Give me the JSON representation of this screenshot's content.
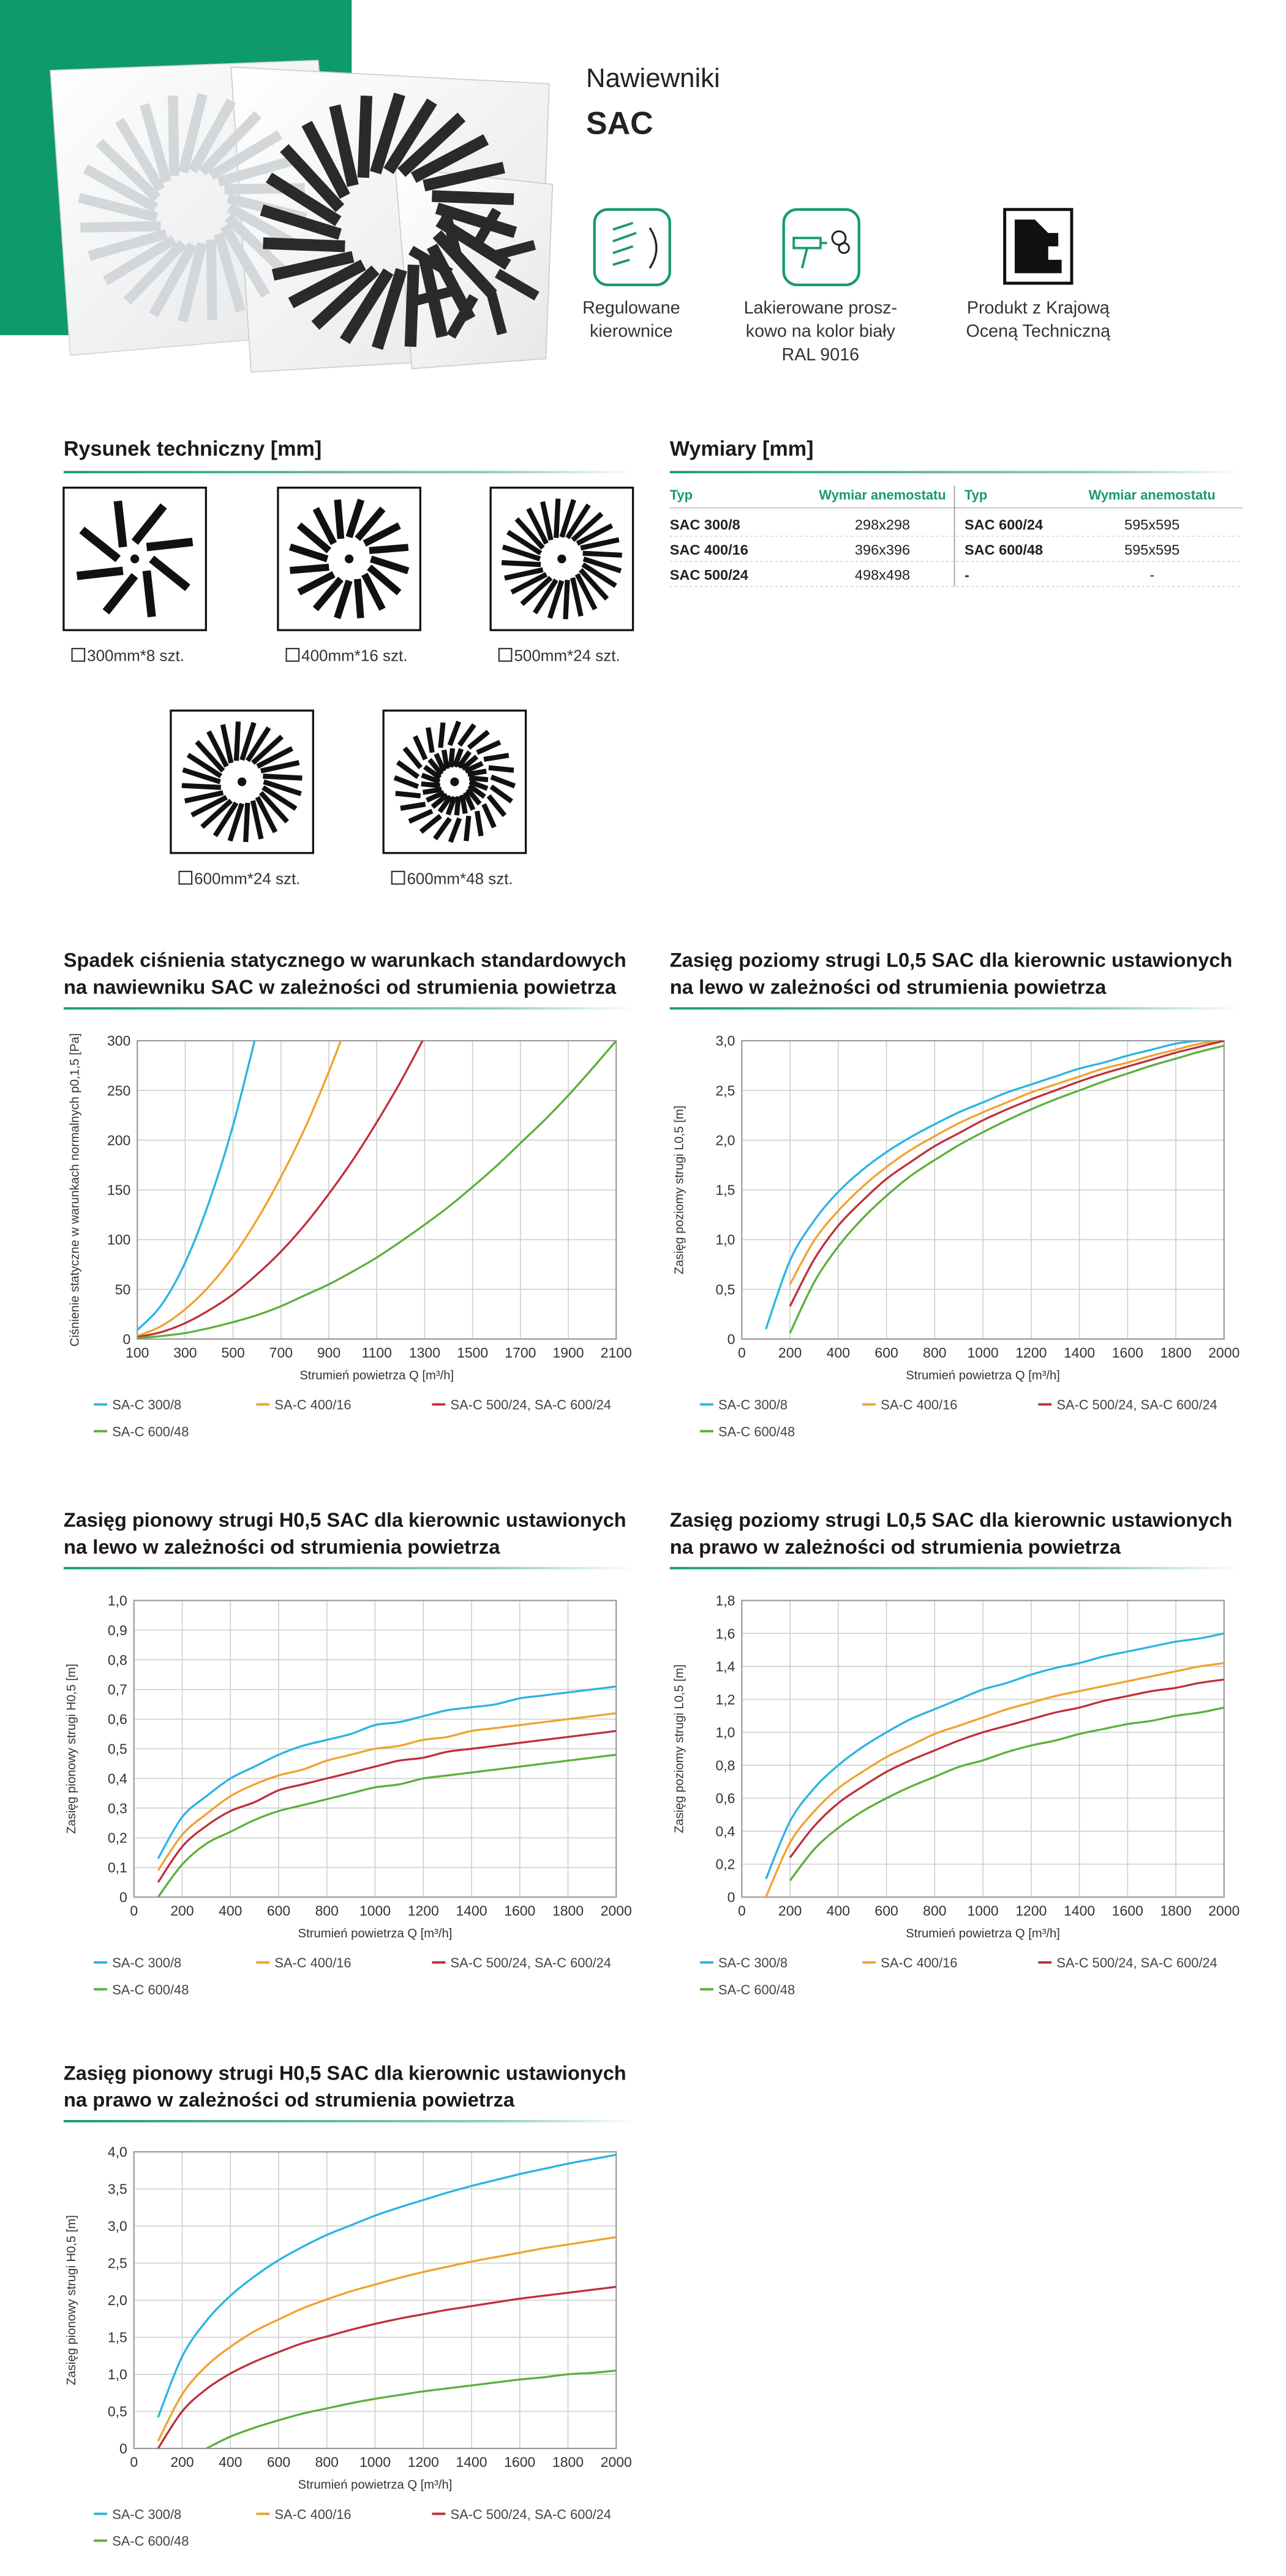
{
  "header": {
    "title": "Nawiewniki",
    "model": "SAC"
  },
  "features": [
    {
      "lines": [
        "Regulowane",
        "kierownice"
      ]
    },
    {
      "lines": [
        "Lakierowane prosz-",
        "kowo na kolor biały",
        "RAL 9016"
      ]
    },
    {
      "lines": [
        "Produkt z Krajową",
        "Oceną Techniczną"
      ]
    }
  ],
  "drawings": {
    "title": "Rysunek techniczny [mm]",
    "items": [
      {
        "label": "300mm*8 szt.",
        "slots": 8
      },
      {
        "label": "400mm*16 szt.",
        "slots": 16
      },
      {
        "label": "500mm*24 szt.",
        "slots": 24
      },
      {
        "label": "600mm*24 szt.",
        "slots": 24
      },
      {
        "label": "600mm*48 szt.",
        "slots": 48
      }
    ]
  },
  "dimensions": {
    "title": "Wymiary [mm]",
    "columns": [
      "Typ",
      "Wymiar anemostatu",
      "Typ",
      "Wymiar anemostatu"
    ],
    "rows": [
      [
        "SAC 300/8",
        "298x298",
        "SAC 600/24",
        "595x595"
      ],
      [
        "SAC 400/16",
        "396x396",
        "SAC 600/48",
        "595x595"
      ],
      [
        "SAC 500/24",
        "498x498",
        "-",
        "-"
      ]
    ]
  },
  "chart_data": [
    {
      "type": "line",
      "title": [
        "Spadek ciśnienia statycznego w warunkach standardowych",
        "na nawiewniku SAC w zależności od strumienia powietrza"
      ],
      "xlabel": "Strumień powietrza Q [m³/h]",
      "ylabel": "Ciśnienie statyczne w warunkach normalnych p0,1,5 [Pa]",
      "x": [
        100,
        200,
        300,
        400,
        500,
        600,
        700,
        800,
        900,
        1000,
        1100,
        1200,
        1300,
        1400,
        1500,
        1600,
        1700,
        1800,
        1900,
        2000,
        2100
      ],
      "xlim": [
        100,
        2100
      ],
      "xticks": [
        100,
        300,
        500,
        700,
        900,
        1100,
        1300,
        1500,
        1700,
        1900,
        2100
      ],
      "ylim": [
        0,
        300
      ],
      "yticks": [
        0,
        50,
        100,
        150,
        200,
        250,
        300
      ],
      "grid": true,
      "series": [
        {
          "name": "SA-C 300/8",
          "color": "#2bb3e3",
          "values": [
            9,
            34,
            77,
            138,
            215,
            310,
            null,
            null,
            null,
            null,
            null,
            null,
            null,
            null,
            null,
            null,
            null,
            null,
            null,
            null,
            null
          ]
        },
        {
          "name": "SA-C 400/16",
          "color": "#f0a22e",
          "values": [
            3,
            13,
            30,
            53,
            83,
            120,
            163,
            212,
            269,
            332,
            null,
            null,
            null,
            null,
            null,
            null,
            null,
            null,
            null,
            null,
            null
          ]
        },
        {
          "name": "SA-C 500/24, SA-C 600/24",
          "color": "#bf2f3b",
          "values": [
            2,
            7,
            16,
            29,
            45,
            65,
            88,
            115,
            146,
            180,
            218,
            259,
            304,
            null,
            null,
            null,
            null,
            null,
            null,
            null,
            null
          ]
        },
        {
          "name": "SA-C 600/48",
          "color": "#5daf3a",
          "values": [
            1,
            3,
            6,
            11,
            17,
            24,
            33,
            44,
            55,
            68,
            82,
            98,
            115,
            133,
            153,
            174,
            197,
            220,
            245,
            272,
            300
          ]
        }
      ]
    },
    {
      "type": "line",
      "title": [
        "Zasięg poziomy strugi L0,5 SAC dla kierownic ustawionych",
        "na lewo w zależności od strumienia powietrza"
      ],
      "xlabel": "Strumień powietrza Q [m³/h]",
      "ylabel": "Zasięg poziomy strugi L0,5 [m]",
      "x": [
        0,
        100,
        200,
        300,
        400,
        500,
        600,
        700,
        800,
        900,
        1000,
        1100,
        1200,
        1300,
        1400,
        1500,
        1600,
        1700,
        1800,
        1900,
        2000
      ],
      "xlim": [
        0,
        2000
      ],
      "xticks": [
        0,
        200,
        400,
        600,
        800,
        1000,
        1200,
        1400,
        1600,
        1800,
        2000
      ],
      "ylim": [
        0,
        3
      ],
      "yticks": [
        0,
        {
          "value": 0.5,
          "label": "0,5"
        },
        {
          "value": 1,
          "label": "1,0"
        },
        {
          "value": 1.5,
          "label": "1,5"
        },
        {
          "value": 2,
          "label": "2,0"
        },
        {
          "value": 2.5,
          "label": "2,5"
        },
        {
          "value": 3,
          "label": "3,0"
        }
      ],
      "grid": true,
      "series": [
        {
          "name": "SA-C 300/8",
          "color": "#2bb3e3",
          "values": [
            null,
            0.1,
            0.79,
            1.19,
            1.48,
            1.7,
            1.88,
            2.03,
            2.16,
            2.28,
            2.38,
            2.48,
            2.56,
            2.64,
            2.72,
            2.78,
            2.85,
            2.91,
            2.97,
            3.0,
            3.0
          ]
        },
        {
          "name": "SA-C 400/16",
          "color": "#f0a22e",
          "values": [
            null,
            null,
            0.55,
            0.99,
            1.29,
            1.53,
            1.73,
            1.9,
            2.04,
            2.17,
            2.28,
            2.38,
            2.48,
            2.56,
            2.64,
            2.72,
            2.78,
            2.85,
            2.91,
            2.97,
            3.0
          ]
        },
        {
          "name": "SA-C 500/24, SA-C 600/24",
          "color": "#bf2f3b",
          "values": [
            null,
            null,
            0.33,
            0.8,
            1.14,
            1.39,
            1.61,
            1.78,
            1.94,
            2.07,
            2.2,
            2.31,
            2.41,
            2.5,
            2.59,
            2.67,
            2.74,
            2.81,
            2.88,
            2.94,
            3.0
          ]
        },
        {
          "name": "SA-C 600/48",
          "color": "#5daf3a",
          "values": [
            null,
            null,
            0.06,
            0.57,
            0.93,
            1.21,
            1.44,
            1.64,
            1.8,
            1.95,
            2.08,
            2.2,
            2.31,
            2.41,
            2.5,
            2.59,
            2.67,
            2.75,
            2.82,
            2.89,
            2.95
          ]
        }
      ]
    },
    {
      "type": "line",
      "title": [
        "Zasięg pionowy strugi H0,5 SAC dla kierownic ustawionych",
        "na lewo w zależności od strumienia powietrza"
      ],
      "xlabel": "Strumień powietrza Q [m³/h]",
      "ylabel": "Zasięg pionowy strugi H0,5 [m]",
      "x": [
        0,
        100,
        200,
        300,
        400,
        500,
        600,
        700,
        800,
        900,
        1000,
        1100,
        1200,
        1300,
        1400,
        1500,
        1600,
        1700,
        1800,
        1900,
        2000
      ],
      "xlim": [
        0,
        2000
      ],
      "xticks": [
        0,
        200,
        400,
        600,
        800,
        1000,
        1200,
        1400,
        1600,
        1800,
        2000
      ],
      "ylim": [
        0,
        1
      ],
      "yticks": [
        0,
        {
          "value": 0.1,
          "label": "0,1"
        },
        {
          "value": 0.2,
          "label": "0,2"
        },
        {
          "value": 0.3,
          "label": "0,3"
        },
        {
          "value": 0.4,
          "label": "0,4"
        },
        {
          "value": 0.5,
          "label": "0,5"
        },
        {
          "value": 0.6,
          "label": "0,6"
        },
        {
          "value": 0.7,
          "label": "0,7"
        },
        {
          "value": 0.8,
          "label": "0,8"
        },
        {
          "value": 0.9,
          "label": "0,9"
        },
        {
          "value": 1,
          "label": "1,0"
        }
      ],
      "grid": true,
      "series": [
        {
          "name": "SA-C 300/8",
          "color": "#2bb3e3",
          "values": [
            null,
            0.13,
            0.27,
            0.34,
            0.4,
            0.44,
            0.48,
            0.51,
            0.53,
            0.55,
            0.58,
            0.59,
            0.61,
            0.63,
            0.64,
            0.65,
            0.67,
            0.68,
            0.69,
            0.7,
            0.71
          ]
        },
        {
          "name": "SA-C 400/16",
          "color": "#f0a22e",
          "values": [
            null,
            0.09,
            0.21,
            0.28,
            0.34,
            0.38,
            0.41,
            0.43,
            0.46,
            0.48,
            0.5,
            0.51,
            0.53,
            0.54,
            0.56,
            0.57,
            0.58,
            0.59,
            0.6,
            0.61,
            0.62
          ]
        },
        {
          "name": "SA-C 500/24, SA-C 600/24",
          "color": "#bf2f3b",
          "values": [
            null,
            0.05,
            0.17,
            0.24,
            0.29,
            0.32,
            0.36,
            0.38,
            0.4,
            0.42,
            0.44,
            0.46,
            0.47,
            0.49,
            0.5,
            0.51,
            0.52,
            0.53,
            0.54,
            0.55,
            0.56
          ]
        },
        {
          "name": "SA-C 600/48",
          "color": "#5daf3a",
          "values": [
            null,
            0,
            0.11,
            0.18,
            0.22,
            0.26,
            0.29,
            0.31,
            0.33,
            0.35,
            0.37,
            0.38,
            0.4,
            0.41,
            0.42,
            0.43,
            0.44,
            0.45,
            0.46,
            0.47,
            0.48
          ]
        }
      ]
    },
    {
      "type": "line",
      "title": [
        "Zasięg poziomy strugi L0,5 SAC dla kierownic ustawionych",
        "na prawo w zależności od strumienia powietrza"
      ],
      "xlabel": "Strumień powietrza Q [m³/h]",
      "ylabel": "Zasięg poziomy strugi L0,5 [m]",
      "x": [
        0,
        100,
        200,
        300,
        400,
        500,
        600,
        700,
        800,
        900,
        1000,
        1100,
        1200,
        1300,
        1400,
        1500,
        1600,
        1700,
        1800,
        1900,
        2000
      ],
      "xlim": [
        0,
        2000
      ],
      "xticks": [
        0,
        200,
        400,
        600,
        800,
        1000,
        1200,
        1400,
        1600,
        1800,
        2000
      ],
      "ylim": [
        0,
        1.8
      ],
      "yticks": [
        0,
        {
          "value": 0.2,
          "label": "0,2"
        },
        {
          "value": 0.4,
          "label": "0,4"
        },
        {
          "value": 0.6,
          "label": "0,6"
        },
        {
          "value": 0.8,
          "label": "0,8"
        },
        {
          "value": 1,
          "label": "1,0"
        },
        {
          "value": 1.2,
          "label": "1,2"
        },
        {
          "value": 1.4,
          "label": "1,4"
        },
        {
          "value": 1.6,
          "label": "1,6"
        },
        {
          "value": 1.8,
          "label": "1,8"
        }
      ],
      "grid": true,
      "series": [
        {
          "name": "SA-C 300/8",
          "color": "#2bb3e3",
          "values": [
            null,
            0.11,
            0.46,
            0.66,
            0.8,
            0.91,
            1.0,
            1.08,
            1.14,
            1.2,
            1.26,
            1.3,
            1.35,
            1.39,
            1.42,
            1.46,
            1.49,
            1.52,
            1.55,
            1.57,
            1.6
          ]
        },
        {
          "name": "SA-C 400/16",
          "color": "#f0a22e",
          "values": [
            null,
            0,
            0.33,
            0.52,
            0.66,
            0.76,
            0.85,
            0.92,
            0.99,
            1.04,
            1.09,
            1.14,
            1.18,
            1.22,
            1.25,
            1.28,
            1.31,
            1.34,
            1.37,
            1.4,
            1.42
          ]
        },
        {
          "name": "SA-C 500/24, SA-C 600/24",
          "color": "#bf2f3b",
          "values": [
            null,
            null,
            0.24,
            0.43,
            0.57,
            0.67,
            0.76,
            0.83,
            0.89,
            0.95,
            1.0,
            1.04,
            1.08,
            1.12,
            1.15,
            1.19,
            1.22,
            1.25,
            1.27,
            1.3,
            1.32
          ]
        },
        {
          "name": "SA-C 600/48",
          "color": "#5daf3a",
          "values": [
            null,
            null,
            0.1,
            0.29,
            0.42,
            0.52,
            0.6,
            0.67,
            0.73,
            0.79,
            0.83,
            0.88,
            0.92,
            0.95,
            0.99,
            1.02,
            1.05,
            1.07,
            1.1,
            1.12,
            1.15
          ]
        }
      ]
    },
    {
      "type": "line",
      "title": [
        "Zasięg pionowy strugi H0,5 SAC dla kierownic ustawionych",
        "na prawo w zależności od strumienia powietrza"
      ],
      "xlabel": "Strumień powietrza Q [m³/h]",
      "ylabel": "Zasięg pionowy strugi H0,5 [m]",
      "x": [
        0,
        100,
        200,
        300,
        400,
        500,
        600,
        700,
        800,
        900,
        1000,
        1100,
        1200,
        1300,
        1400,
        1500,
        1600,
        1700,
        1800,
        1900,
        2000
      ],
      "xlim": [
        0,
        2000
      ],
      "xticks": [
        0,
        200,
        400,
        600,
        800,
        1000,
        1200,
        1400,
        1600,
        1800,
        2000
      ],
      "ylim": [
        0,
        4
      ],
      "yticks": [
        0,
        {
          "value": 0.5,
          "label": "0,5"
        },
        {
          "value": 1,
          "label": "1,0"
        },
        {
          "value": 1.5,
          "label": "1,5"
        },
        {
          "value": 2,
          "label": "2,0"
        },
        {
          "value": 2.5,
          "label": "2,5"
        },
        {
          "value": 3,
          "label": "3,0"
        },
        {
          "value": 3.5,
          "label": "3,5"
        },
        {
          "value": 4,
          "label": "4,0"
        }
      ],
      "grid": true,
      "series": [
        {
          "name": "SA-C 300/8",
          "color": "#2bb3e3",
          "values": [
            null,
            0.42,
            1.24,
            1.72,
            2.06,
            2.32,
            2.54,
            2.72,
            2.88,
            3.01,
            3.14,
            3.25,
            3.35,
            3.45,
            3.54,
            3.62,
            3.7,
            3.77,
            3.84,
            3.9,
            3.96
          ]
        },
        {
          "name": "SA-C 400/16",
          "color": "#f0a22e",
          "values": [
            null,
            0.1,
            0.73,
            1.11,
            1.37,
            1.58,
            1.74,
            1.89,
            2.01,
            2.12,
            2.21,
            2.3,
            2.38,
            2.45,
            2.52,
            2.58,
            2.64,
            2.7,
            2.75,
            2.8,
            2.85
          ]
        },
        {
          "name": "SA-C 500/24, SA-C 600/24",
          "color": "#bf2f3b",
          "values": [
            null,
            0,
            0.5,
            0.8,
            1.01,
            1.17,
            1.3,
            1.42,
            1.51,
            1.6,
            1.68,
            1.75,
            1.81,
            1.87,
            1.92,
            1.97,
            2.02,
            2.06,
            2.1,
            2.14,
            2.18
          ]
        },
        {
          "name": "SA-C 600/48",
          "color": "#5daf3a",
          "values": [
            null,
            null,
            null,
            0,
            0.16,
            0.28,
            0.38,
            0.47,
            0.54,
            0.61,
            0.67,
            0.72,
            0.77,
            0.81,
            0.85,
            0.89,
            0.93,
            0.96,
            1.0,
            1.02,
            1.05
          ]
        }
      ]
    }
  ]
}
